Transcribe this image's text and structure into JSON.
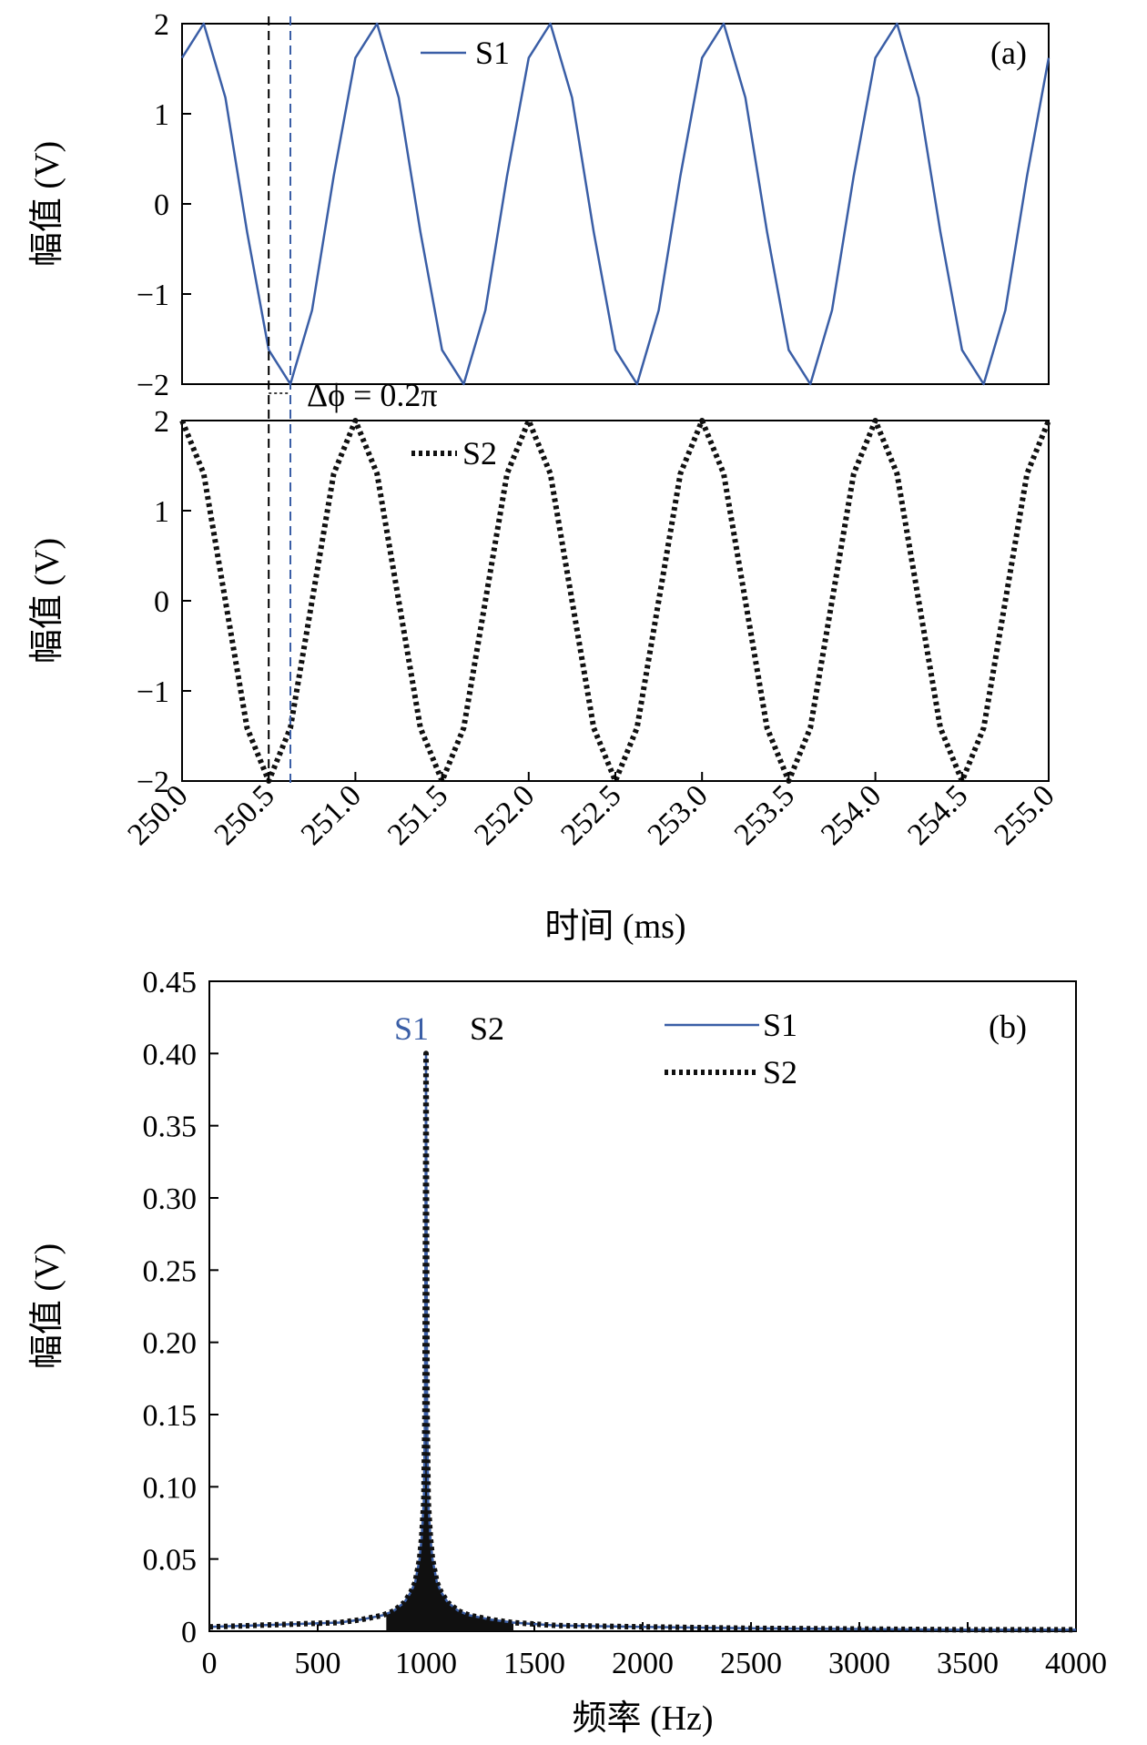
{
  "colors": {
    "s1": "#3a5ea6",
    "s2": "#111111",
    "axis": "#000000",
    "marker_black": "#000000",
    "marker_blue": "#3a5ea6"
  },
  "chart_data": [
    {
      "type": "line",
      "panel_label": "(a)",
      "ylabel": "幅值 (V)",
      "xlim": [
        250.0,
        255.0
      ],
      "ylim": [
        -2,
        2
      ],
      "yticks": [
        "2",
        "1",
        "0",
        "−1",
        "−2"
      ],
      "series": [
        {
          "name": "S1",
          "style": "solid",
          "x": [
            250.0,
            250.125,
            250.25,
            250.375,
            250.5,
            250.625,
            250.75,
            250.875,
            251.0,
            251.125,
            251.25,
            251.375,
            251.5,
            251.625,
            251.75,
            251.875,
            252.0,
            252.125,
            252.25,
            252.375,
            252.5,
            252.625,
            252.75,
            252.875,
            253.0,
            253.125,
            253.25,
            253.375,
            253.5,
            253.625,
            253.75,
            253.875,
            254.0,
            254.125,
            254.25,
            254.375,
            254.5,
            254.625,
            254.75,
            254.875,
            255.0
          ],
          "y": [
            1.62,
            2.0,
            1.18,
            -0.31,
            -1.62,
            -2.0,
            -1.18,
            0.31,
            1.62,
            2.0,
            1.18,
            -0.31,
            -1.62,
            -2.0,
            -1.18,
            0.31,
            1.62,
            2.0,
            1.18,
            -0.31,
            -1.62,
            -2.0,
            -1.18,
            0.31,
            1.62,
            2.0,
            1.18,
            -0.31,
            -1.62,
            -2.0,
            -1.18,
            0.31,
            1.62,
            2.0,
            1.18,
            -0.31,
            -1.62,
            -2.0,
            -1.18,
            0.31,
            1.62
          ]
        }
      ],
      "markers": [
        {
          "x": 250.5,
          "style": "black-dashed"
        },
        {
          "x": 250.625,
          "style": "blue-dashed"
        }
      ],
      "annotation": "Δϕ = 0.2π"
    },
    {
      "type": "line",
      "ylabel": "幅值 (V)",
      "xlabel": "时间 (ms)",
      "xlim": [
        250.0,
        255.0
      ],
      "ylim": [
        -2,
        2
      ],
      "yticks": [
        "2",
        "1",
        "0",
        "−1",
        "−2"
      ],
      "xticks": [
        "250.0",
        "250.5",
        "251.0",
        "251.5",
        "252.0",
        "252.5",
        "253.0",
        "253.5",
        "254.0",
        "254.5",
        "255.0"
      ],
      "series": [
        {
          "name": "S2",
          "style": "dotted",
          "x": [
            250.0,
            250.125,
            250.25,
            250.375,
            250.5,
            250.625,
            250.75,
            250.875,
            251.0,
            251.125,
            251.25,
            251.375,
            251.5,
            251.625,
            251.75,
            251.875,
            252.0,
            252.125,
            252.25,
            252.375,
            252.5,
            252.625,
            252.75,
            252.875,
            253.0,
            253.125,
            253.25,
            253.375,
            253.5,
            253.625,
            253.75,
            253.875,
            254.0,
            254.125,
            254.25,
            254.375,
            254.5,
            254.625,
            254.75,
            254.875,
            255.0
          ],
          "y": [
            2.0,
            1.41,
            0.0,
            -1.41,
            -2.0,
            -1.41,
            0.0,
            1.41,
            2.0,
            1.41,
            0.0,
            -1.41,
            -2.0,
            -1.41,
            0.0,
            1.41,
            2.0,
            1.41,
            0.0,
            -1.41,
            -2.0,
            -1.41,
            0.0,
            1.41,
            2.0,
            1.41,
            0.0,
            -1.41,
            -2.0,
            -1.41,
            0.0,
            1.41,
            2.0,
            1.41,
            0.0,
            -1.41,
            -2.0,
            -1.41,
            0.0,
            1.41,
            2.0
          ]
        }
      ],
      "markers": [
        {
          "x": 250.5,
          "style": "black-dashed"
        },
        {
          "x": 250.625,
          "style": "blue-dashed"
        }
      ]
    },
    {
      "type": "line",
      "panel_label": "(b)",
      "ylabel": "幅值 (V)",
      "xlabel": "频率 (Hz)",
      "xlim": [
        0,
        4000
      ],
      "ylim": [
        0,
        0.45
      ],
      "yticks": [
        "0",
        "0.05",
        "0.10",
        "0.15",
        "0.20",
        "0.25",
        "0.30",
        "0.35",
        "0.40",
        "0.45"
      ],
      "xticks": [
        "0",
        "500",
        "1000",
        "1500",
        "2000",
        "2500",
        "3000",
        "3500",
        "4000"
      ],
      "peak_labels": [
        "S1",
        "S2"
      ],
      "series": [
        {
          "name": "S1",
          "style": "solid",
          "x": [
            0,
            200,
            400,
            600,
            700,
            800,
            850,
            900,
            930,
            950,
            970,
            980,
            990,
            995,
            1000,
            1005,
            1010,
            1020,
            1030,
            1050,
            1070,
            1100,
            1150,
            1200,
            1300,
            1400,
            1600,
            2000,
            2500,
            3000,
            3500,
            4000
          ],
          "y": [
            0.003,
            0.004,
            0.005,
            0.006,
            0.008,
            0.011,
            0.014,
            0.02,
            0.027,
            0.034,
            0.05,
            0.065,
            0.09,
            0.15,
            0.4,
            0.15,
            0.09,
            0.065,
            0.05,
            0.034,
            0.027,
            0.02,
            0.014,
            0.011,
            0.008,
            0.006,
            0.004,
            0.003,
            0.002,
            0.0015,
            0.001,
            0.001
          ]
        },
        {
          "name": "S2",
          "style": "dotted",
          "x": [
            0,
            200,
            400,
            600,
            700,
            800,
            850,
            900,
            930,
            950,
            970,
            980,
            990,
            995,
            1000,
            1005,
            1010,
            1020,
            1030,
            1050,
            1070,
            1100,
            1150,
            1200,
            1300,
            1400,
            1600,
            2000,
            2500,
            3000,
            3500,
            4000
          ],
          "y": [
            0.003,
            0.004,
            0.005,
            0.006,
            0.008,
            0.011,
            0.014,
            0.02,
            0.027,
            0.034,
            0.05,
            0.065,
            0.09,
            0.15,
            0.4,
            0.15,
            0.09,
            0.065,
            0.05,
            0.034,
            0.027,
            0.02,
            0.014,
            0.011,
            0.008,
            0.006,
            0.004,
            0.003,
            0.002,
            0.0015,
            0.001,
            0.001
          ]
        }
      ]
    }
  ]
}
